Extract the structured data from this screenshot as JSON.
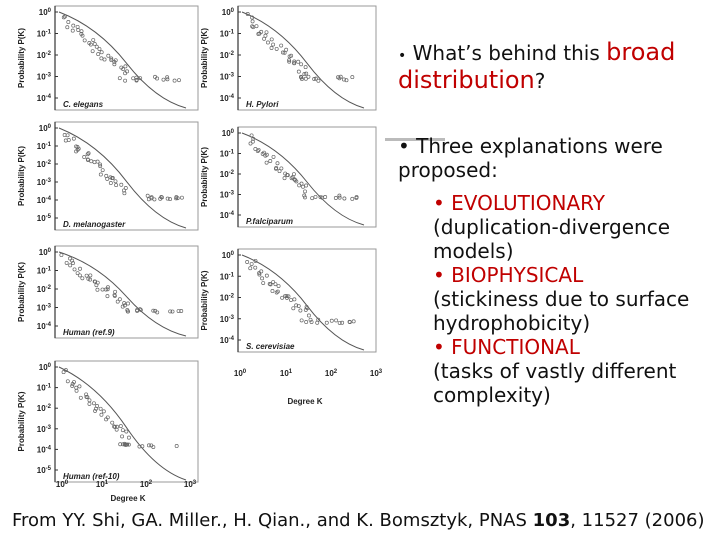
{
  "figure": {
    "tick_base": "10",
    "ylabel": "Probability P(K)",
    "xlabel": "Degree K",
    "left_xticks": [
      "0",
      "1",
      "2",
      "3"
    ],
    "right_xticks": [
      "0",
      "1",
      "2",
      "3"
    ],
    "left_panels": [
      {
        "label": "C. elegans",
        "yticks": [
          "0",
          "-1",
          "-2",
          "-3",
          "-4"
        ]
      },
      {
        "label": "D. melanogaster",
        "yticks": [
          "0",
          "-1",
          "-2",
          "-3",
          "-4",
          "-5"
        ]
      },
      {
        "label": "Human (ref.9)",
        "yticks": [
          "0",
          "-1",
          "-2",
          "-3",
          "-4"
        ]
      },
      {
        "label": "Human (ref-10)",
        "yticks": [
          "0",
          "-1",
          "-2",
          "-3",
          "-4",
          "-5"
        ]
      }
    ],
    "right_panels": [
      {
        "label": "H. Pylori",
        "yticks": [
          "0",
          "-1",
          "-2",
          "-3",
          "-4"
        ]
      },
      {
        "label": "P.falciparum",
        "yticks": [
          "0",
          "-1",
          "-2",
          "-3",
          "-4"
        ]
      },
      {
        "label": "S. cerevisiae",
        "yticks": [
          "0",
          "-1",
          "-2",
          "-3",
          "-4"
        ]
      }
    ]
  },
  "text": {
    "bullet": "•",
    "q1": {
      "pre": "What’s behind this ",
      "em": "broad distribution",
      "post": "?"
    },
    "q2": "Three explanations were proposed:",
    "items": [
      {
        "name": "EVOLUTIONARY",
        "detail": "(duplication-divergence models)"
      },
      {
        "name": "BIOPHYSICAL",
        "detail": "(stickiness due to surface hydrophobicity)"
      },
      {
        "name": "FUNCTIONAL",
        "detail": "(tasks of vastly different complexity)"
      }
    ]
  },
  "citation": {
    "pre": "From YY. Shi, GA. Miller., H. Qian., and K. Bomsztyk, PNAS ",
    "vol": "103",
    "post": ", 11527 (2006)"
  }
}
